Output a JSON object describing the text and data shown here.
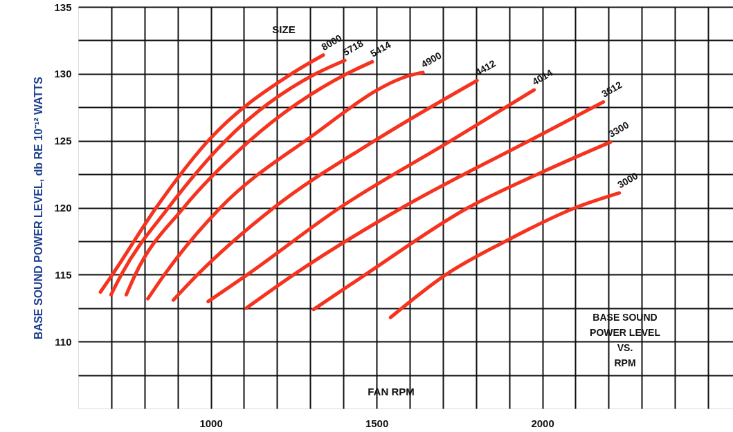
{
  "chart_data": {
    "type": "line",
    "xlabel": "FAN RPM",
    "ylabel": "BASE SOUND POWER LEVEL, db RE 10⁻¹² WATTS",
    "legend_title": "SIZE",
    "annotations": [
      "BASE SOUND\nPOWER LEVEL\nVS.\nRPM"
    ],
    "xlim": [
      600,
      2575
    ],
    "ylim": [
      105,
      135
    ],
    "xticks": [
      {
        "value": 700,
        "label": null
      },
      {
        "value": 800,
        "label": null
      },
      {
        "value": 900,
        "label": null
      },
      1000,
      {
        "value": 1100,
        "label": null
      },
      {
        "value": 1200,
        "label": null
      },
      {
        "value": 1300,
        "label": null
      },
      {
        "value": 1400,
        "label": null
      },
      1500,
      {
        "value": 1600,
        "label": null
      },
      {
        "value": 1700,
        "label": null
      },
      {
        "value": 1800,
        "label": null
      },
      {
        "value": 1900,
        "label": null
      },
      2000,
      {
        "value": 2100,
        "label": null
      },
      {
        "value": 2200,
        "label": null
      },
      {
        "value": 2300,
        "label": null
      },
      {
        "value": 2400,
        "label": null
      },
      {
        "value": 2500,
        "label": null
      }
    ],
    "yticks": [
      {
        "value": 107.5,
        "label": null
      },
      110,
      {
        "value": 112.5,
        "label": null
      },
      115,
      {
        "value": 117.5,
        "label": null
      },
      120,
      {
        "value": 122.5,
        "label": null
      },
      125,
      {
        "value": 127.5,
        "label": null
      },
      130,
      {
        "value": 132.5,
        "label": null
      },
      135
    ],
    "grid": true,
    "marker": "none",
    "line_style": "solid",
    "series": [
      {
        "name": "8000",
        "color": "#f5331f",
        "x": [
          667,
          703,
          835,
          992,
          1243,
          1339
        ],
        "values": [
          113.7,
          115,
          120,
          125,
          130,
          131.4
        ]
      },
      {
        "name": "5718",
        "color": "#f5331f",
        "x": [
          699,
          730,
          872,
          1044,
          1316,
          1404
        ],
        "values": [
          113.5,
          115,
          120,
          125,
          130,
          131.0
        ]
      },
      {
        "name": "5414",
        "color": "#f5331f",
        "x": [
          745,
          772,
          918,
          1117,
          1410,
          1487
        ],
        "values": [
          113.5,
          115,
          120,
          125,
          130,
          130.9
        ]
      },
      {
        "name": "4900",
        "color": "#f5331f",
        "x": [
          810,
          860,
          1029,
          1285,
          1619,
          1640
        ],
        "values": [
          113.2,
          115,
          120,
          125,
          130,
          130.1
        ]
      },
      {
        "name": "4412",
        "color": "#f5331f",
        "x": [
          887,
          960,
          1190,
          1494,
          1803
        ],
        "values": [
          113.1,
          115,
          120,
          125,
          129.5
        ]
      },
      {
        "name": "4014",
        "color": "#f5331f",
        "x": [
          992,
          1110,
          1389,
          1724,
          1975
        ],
        "values": [
          113.0,
          115,
          120,
          125,
          128.8
        ]
      },
      {
        "name": "3612",
        "color": "#f5331f",
        "x": [
          1107,
          1250,
          1577,
          1960,
          2184
        ],
        "values": [
          112.5,
          115,
          120,
          125,
          127.9
        ]
      },
      {
        "name": "3300",
        "color": "#f5331f",
        "x": [
          1310,
          1466,
          1776,
          1994,
          2205
        ],
        "values": [
          112.4,
          115,
          120,
          122.6,
          124.9
        ]
      },
      {
        "name": "3000",
        "color": "#f5331f",
        "x": [
          1542,
          1709,
          1889,
          2100,
          2232
        ],
        "values": [
          111.8,
          115,
          117.5,
          120,
          121.1
        ]
      }
    ]
  }
}
